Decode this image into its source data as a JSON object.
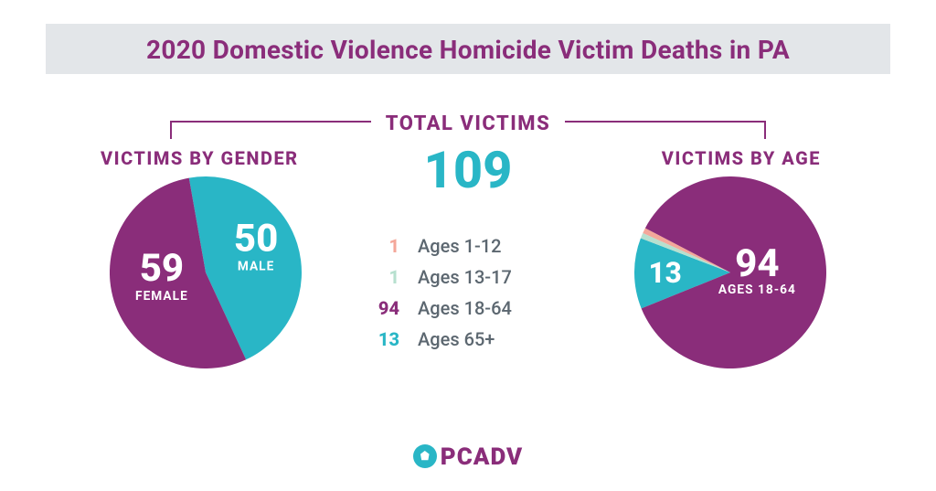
{
  "colors": {
    "teal": "#29b6c6",
    "purple": "#8a2d7a",
    "coral": "#f4a79a",
    "mint": "#b7e0cf",
    "title_bg": "#e3e6e9",
    "title_text": "#8a2d7a",
    "slate": "#5c6770",
    "white": "#ffffff"
  },
  "title": "2020 Domestic Violence Homicide Victim Deaths in PA",
  "total": {
    "label": "TOTAL VICTIMS",
    "value": "109"
  },
  "gender": {
    "title": "VICTIMS BY GENDER",
    "type": "pie",
    "slices": [
      {
        "key": "male",
        "label": "MALE",
        "value": 50,
        "value_text": "50",
        "color_key": "teal"
      },
      {
        "key": "female",
        "label": "FEMALE",
        "value": 59,
        "value_text": "59",
        "color_key": "purple"
      }
    ]
  },
  "age": {
    "title": "VICTIMS BY AGE",
    "type": "pie",
    "slices": [
      {
        "label": "Ages 1-12",
        "value": 1,
        "value_text": "1",
        "color_key": "coral"
      },
      {
        "label": "Ages 13-17",
        "value": 1,
        "value_text": "1",
        "color_key": "mint"
      },
      {
        "label": "Ages 18-64",
        "value": 94,
        "value_text": "94",
        "color_key": "purple"
      },
      {
        "label": "Ages 65+",
        "value": 13,
        "value_text": "13",
        "color_key": "teal"
      }
    ],
    "highlight": {
      "main": {
        "value_text": "94",
        "label": "AGES 18-64"
      },
      "minor": {
        "value_text": "13"
      }
    }
  },
  "logo": {
    "text": "PCADV"
  }
}
